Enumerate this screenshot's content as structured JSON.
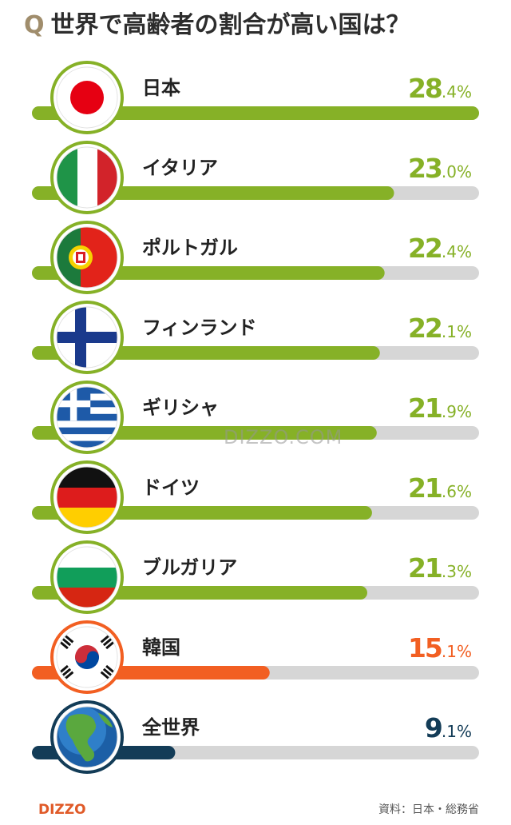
{
  "title": {
    "q": "Q",
    "text": "世界で高齢者の割合が高い国は？"
  },
  "watermark": "DIZZO.COM",
  "footer": {
    "logo": "DIZZO",
    "source": "資料：日本・総務省"
  },
  "colors": {
    "green": "#86b127",
    "orange": "#f25f22",
    "navy": "#133c57",
    "track": "#d6d6d6",
    "text": "#222222"
  },
  "chart_data": {
    "type": "bar",
    "orientation": "horizontal",
    "unit": "%",
    "xlim": [
      0,
      28.4
    ],
    "categories": [
      "日本",
      "イタリア",
      "ポルトガル",
      "フィンランド",
      "ギリシャ",
      "ドイツ",
      "ブルガリア",
      "韓国",
      "全世界"
    ],
    "values": [
      28.4,
      23.0,
      22.4,
      22.1,
      21.9,
      21.6,
      21.3,
      15.1,
      9.1
    ],
    "value_labels": [
      {
        "int": "28",
        "dec": ".4",
        "pct": "%"
      },
      {
        "int": "23",
        "dec": ".0",
        "pct": "%"
      },
      {
        "int": "22",
        "dec": ".4",
        "pct": "%"
      },
      {
        "int": "22",
        "dec": ".1",
        "pct": "%"
      },
      {
        "int": "21",
        "dec": ".9",
        "pct": "%"
      },
      {
        "int": "21",
        "dec": ".6",
        "pct": "%"
      },
      {
        "int": "21",
        "dec": ".3",
        "pct": "%"
      },
      {
        "int": "15",
        "dec": ".1",
        "pct": "%"
      },
      {
        "int": "9",
        "dec": ".1",
        "pct": "%"
      }
    ],
    "bar_colors": [
      "green",
      "green",
      "green",
      "green",
      "green",
      "green",
      "green",
      "orange",
      "navy"
    ],
    "flags": [
      "japan-flag-icon",
      "italy-flag-icon",
      "portugal-flag-icon",
      "finland-flag-icon",
      "greece-flag-icon",
      "germany-flag-icon",
      "bulgaria-flag-icon",
      "korea-flag-icon",
      "globe-icon"
    ]
  }
}
